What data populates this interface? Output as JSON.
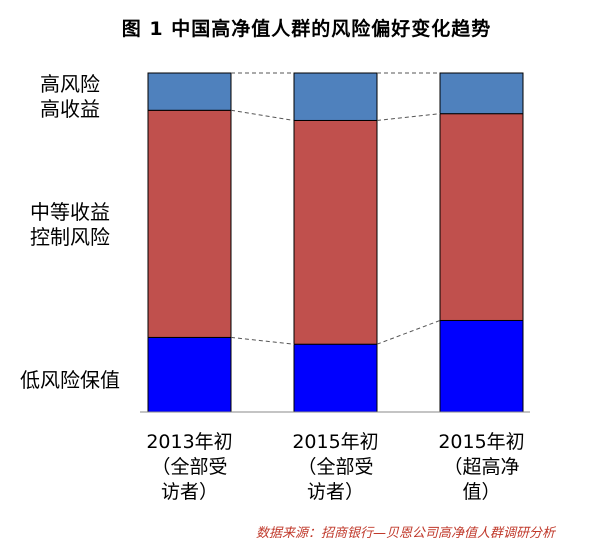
{
  "title": "图 1    中国高净值人群的风险偏好变化趋势",
  "row_labels": {
    "high": [
      "高风险",
      "高收益"
    ],
    "mid": [
      "中等收益",
      "控制风险"
    ],
    "low": [
      "低风险保值"
    ]
  },
  "chart_data": {
    "type": "bar",
    "stacked": true,
    "normalized": true,
    "categories": [
      [
        "2013年初",
        "（全部受",
        "访者）"
      ],
      [
        "2015年初",
        "（全部受",
        "访者）"
      ],
      [
        "2015年初",
        "（超高净",
        "值）"
      ]
    ],
    "series": [
      {
        "values": [
          0.22,
          0.2,
          0.27
        ],
        "color": "#0000ff"
      },
      {
        "values": [
          0.67,
          0.66,
          0.61
        ],
        "color": "#c0504d"
      },
      {
        "values": [
          0.11,
          0.14,
          0.12
        ],
        "color": "#4f81bd"
      }
    ],
    "ylim": [
      0,
      1
    ],
    "connector_lines": true
  },
  "source": "数据来源：招商银行—贝恩公司高净值人群调研分析"
}
